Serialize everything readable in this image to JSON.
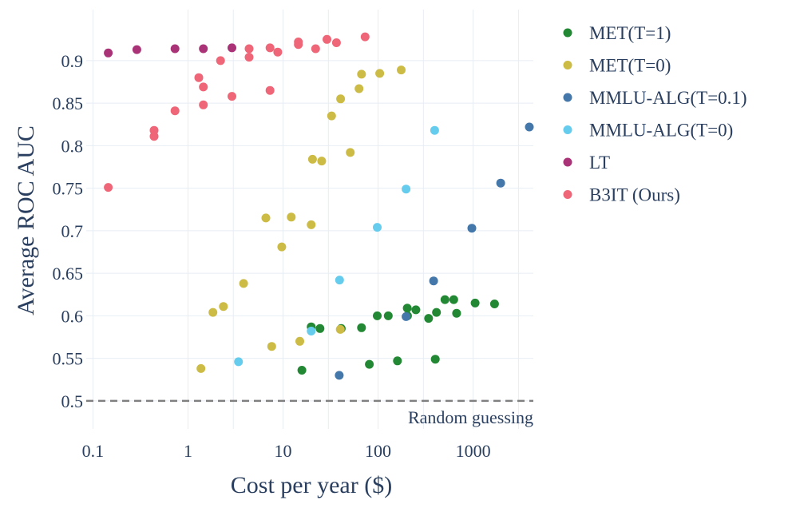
{
  "chart_data": {
    "type": "scatter",
    "title": "",
    "xlabel": "Cost per year ($)",
    "ylabel": "Average ROC AUC",
    "xscale": "log",
    "xlim": [
      0.085,
      4300
    ],
    "ylim": [
      0.467,
      0.96
    ],
    "xticks": [
      {
        "value": 0.1,
        "label": "0.1"
      },
      {
        "value": 1,
        "label": "1"
      },
      {
        "value": 10,
        "label": "10"
      },
      {
        "value": 100,
        "label": "100"
      },
      {
        "value": 1000,
        "label": "1000"
      }
    ],
    "xgrid_minor": [
      3,
      30,
      300,
      3000
    ],
    "yticks": [
      {
        "value": 0.5,
        "label": "0.5"
      },
      {
        "value": 0.55,
        "label": "0.55"
      },
      {
        "value": 0.6,
        "label": "0.6"
      },
      {
        "value": 0.65,
        "label": "0.65"
      },
      {
        "value": 0.7,
        "label": "0.7"
      },
      {
        "value": 0.75,
        "label": "0.75"
      },
      {
        "value": 0.8,
        "label": "0.8"
      },
      {
        "value": 0.85,
        "label": "0.85"
      },
      {
        "value": 0.9,
        "label": "0.9"
      }
    ],
    "reference_line": {
      "y": 0.5,
      "label": "Random guessing",
      "color": "#808080"
    },
    "series": [
      {
        "name": "MET(T=1)",
        "color": "#228833",
        "points": [
          [
            15.8,
            0.536
          ],
          [
            19.8,
            0.587
          ],
          [
            24.5,
            0.585
          ],
          [
            41,
            0.585
          ],
          [
            67,
            0.586
          ],
          [
            81,
            0.543
          ],
          [
            98,
            0.6
          ],
          [
            128,
            0.6
          ],
          [
            160,
            0.547
          ],
          [
            203,
            0.609
          ],
          [
            204,
            0.6
          ],
          [
            250,
            0.607
          ],
          [
            340,
            0.597
          ],
          [
            400,
            0.549
          ],
          [
            412,
            0.604
          ],
          [
            505,
            0.619
          ],
          [
            625,
            0.619
          ],
          [
            670,
            0.603
          ],
          [
            1050,
            0.615
          ],
          [
            1680,
            0.614
          ]
        ]
      },
      {
        "name": "MET(T=0)",
        "color": "#ccbb44",
        "points": [
          [
            1.37,
            0.538
          ],
          [
            1.83,
            0.604
          ],
          [
            2.36,
            0.611
          ],
          [
            3.85,
            0.638
          ],
          [
            6.6,
            0.715
          ],
          [
            7.6,
            0.564
          ],
          [
            9.7,
            0.681
          ],
          [
            12.2,
            0.716
          ],
          [
            15.0,
            0.57
          ],
          [
            19.8,
            0.707
          ],
          [
            20.4,
            0.784
          ],
          [
            25.5,
            0.782
          ],
          [
            32.4,
            0.835
          ],
          [
            40.0,
            0.584
          ],
          [
            40.3,
            0.855
          ],
          [
            51,
            0.792
          ],
          [
            63,
            0.867
          ],
          [
            67,
            0.884
          ],
          [
            104,
            0.885
          ],
          [
            175,
            0.889
          ]
        ]
      },
      {
        "name": "MMLU-ALG(T=0.1)",
        "color": "#4477aa",
        "points": [
          [
            39,
            0.53
          ],
          [
            197,
            0.599
          ],
          [
            384,
            0.641
          ],
          [
            970,
            0.703
          ],
          [
            1950,
            0.756
          ],
          [
            3900,
            0.822
          ]
        ]
      },
      {
        "name": "MMLU-ALG(T=0)",
        "color": "#66ccee",
        "points": [
          [
            3.4,
            0.546
          ],
          [
            19.8,
            0.582
          ],
          [
            39.3,
            0.642
          ],
          [
            98,
            0.704
          ],
          [
            197,
            0.749
          ],
          [
            394,
            0.818
          ]
        ]
      },
      {
        "name": "LT",
        "color": "#aa3377",
        "points": [
          [
            0.145,
            0.909
          ],
          [
            0.29,
            0.913
          ],
          [
            0.73,
            0.914
          ],
          [
            1.45,
            0.914
          ],
          [
            2.9,
            0.915
          ]
        ]
      },
      {
        "name": "B3IT (Ours)",
        "color": "#ee6677",
        "points": [
          [
            0.145,
            0.751
          ],
          [
            0.44,
            0.811
          ],
          [
            0.44,
            0.818
          ],
          [
            0.73,
            0.841
          ],
          [
            1.3,
            0.88
          ],
          [
            1.45,
            0.848
          ],
          [
            1.45,
            0.869
          ],
          [
            2.2,
            0.9
          ],
          [
            2.9,
            0.858
          ],
          [
            4.4,
            0.904
          ],
          [
            4.4,
            0.914
          ],
          [
            7.3,
            0.865
          ],
          [
            7.3,
            0.915
          ],
          [
            8.8,
            0.91
          ],
          [
            14.5,
            0.919
          ],
          [
            14.5,
            0.922
          ],
          [
            22,
            0.914
          ],
          [
            29,
            0.925
          ],
          [
            36.5,
            0.921
          ],
          [
            73,
            0.928
          ]
        ]
      }
    ],
    "legend": {
      "position": "right"
    }
  }
}
